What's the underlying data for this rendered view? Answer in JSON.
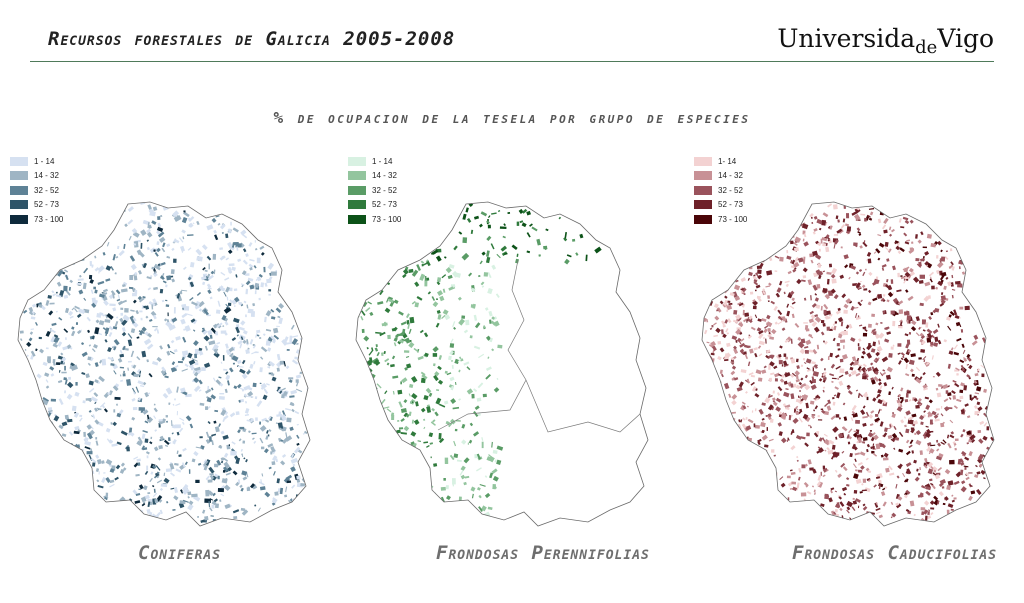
{
  "header": {
    "title": "Recursos forestales de Galicia 2005-2008",
    "logo_main": "Universida",
    "logo_sub": "de",
    "logo_end": "Vigo"
  },
  "subtitle": "% de ocupacion de la tesela por grupo de especies",
  "maps": [
    {
      "title": "Coniferas",
      "legend": [
        "1 - 14",
        "14 - 32",
        "32 - 52",
        "52 - 73",
        "73 - 100"
      ],
      "colors": [
        "#d6e1f1",
        "#9fb5c4",
        "#5e8296",
        "#2e5468",
        "#0e2a3c"
      ]
    },
    {
      "title": "Frondosas Perennifolias",
      "legend": [
        "1 - 14",
        "14 - 32",
        "32 - 52",
        "52 - 73",
        "73 - 100"
      ],
      "colors": [
        "#d8f1e2",
        "#93c59e",
        "#5a9c66",
        "#2f7a3c",
        "#0c5218"
      ]
    },
    {
      "title": "Frondosas Caducifolias",
      "legend": [
        "1- 14",
        "14 - 32",
        "32 - 52",
        "52 - 73",
        "73 - 100"
      ],
      "colors": [
        "#f3d2d2",
        "#c89196",
        "#9a535c",
        "#6e2129",
        "#4a0508"
      ]
    }
  ]
}
